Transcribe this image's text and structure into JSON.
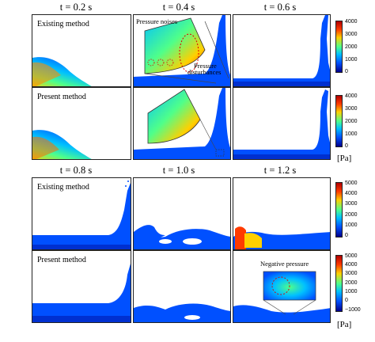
{
  "top_group": {
    "time_labels": [
      "t = 0.2 s",
      "t = 0.4 s",
      "t = 0.6 s"
    ],
    "row_labels": [
      "Existing method",
      "Present method"
    ],
    "colorbar_ticks": [
      "4000",
      "3000",
      "2000",
      "1000",
      "0"
    ],
    "annotations": {
      "noise": "Pressure noises",
      "disturb_1": "Pressure",
      "disturb_2": "disturbances"
    }
  },
  "bottom_group": {
    "time_labels": [
      "t = 0.8 s",
      "t = 1.0 s",
      "t = 1.2 s"
    ],
    "row_labels": [
      "Existing method",
      "Present method"
    ],
    "colorbar_ticks_top": [
      "5000",
      "4000",
      "3000",
      "2000",
      "1000",
      "0"
    ],
    "colorbar_ticks_bottom": [
      "5000",
      "4000",
      "3000",
      "2000",
      "1000",
      "0",
      "−1000"
    ],
    "annotations": {
      "negative": "Negative pressure"
    }
  },
  "unit_label": "[Pa]",
  "colors": {
    "deep_blue": "#00008b",
    "blue": "#0050ff",
    "cyan": "#00c0ff",
    "green": "#4fff8a",
    "yellow": "#ffd000",
    "red": "#ff3a00",
    "dark_red": "#b00000"
  }
}
